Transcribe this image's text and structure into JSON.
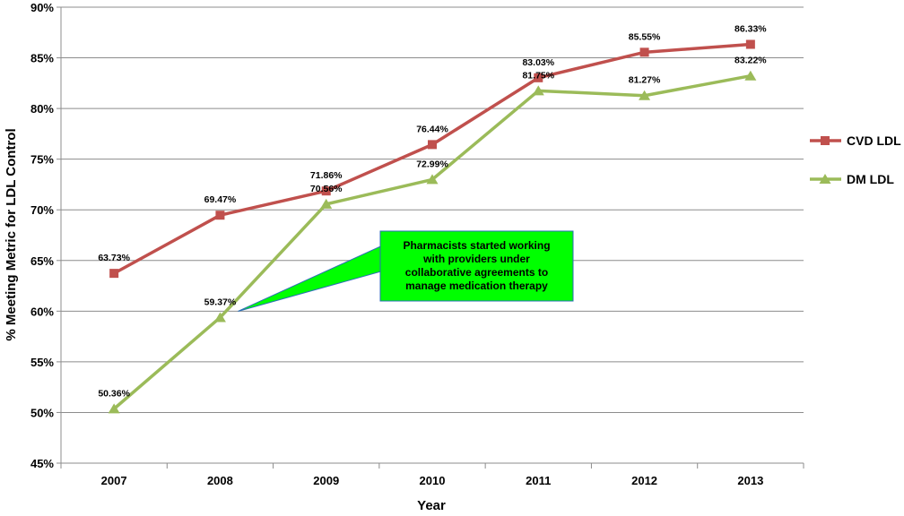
{
  "chart_data": {
    "type": "line",
    "title": "",
    "xlabel": "Year",
    "ylabel": "% Meeting Metric for  LDL Control",
    "categories": [
      "2007",
      "2008",
      "2009",
      "2010",
      "2011",
      "2012",
      "2013"
    ],
    "ylim": [
      45,
      90
    ],
    "ytick_step": 5,
    "y_tick_labels": [
      "45%",
      "50%",
      "55%",
      "60%",
      "65%",
      "70%",
      "75%",
      "80%",
      "85%",
      "90%"
    ],
    "grid": "horizontal",
    "legend_position": "right",
    "series": [
      {
        "name": "CVD LDL",
        "color": "#c0504d",
        "marker": "square",
        "values": [
          63.73,
          69.47,
          71.86,
          76.44,
          83.03,
          85.55,
          86.33
        ],
        "labels": [
          "63.73%",
          "69.47%",
          "71.86%",
          "76.44%",
          "83.03%",
          "85.55%",
          "86.33%"
        ]
      },
      {
        "name": "DM LDL",
        "color": "#9bbb59",
        "marker": "triangle",
        "values": [
          50.36,
          59.37,
          70.56,
          72.99,
          81.75,
          81.27,
          83.22
        ],
        "labels": [
          "50.36%",
          "59.37%",
          "70.56%",
          "72.99%",
          "81.75%",
          "81.27%",
          "83.22%"
        ]
      }
    ],
    "annotation": {
      "text": "Pharmacists started working\nwith providers under\ncollaborative agreements to\nmanage medication therapy",
      "fill": "#00ff00",
      "points_to_series": "DM LDL",
      "points_to_category": "2008"
    }
  }
}
